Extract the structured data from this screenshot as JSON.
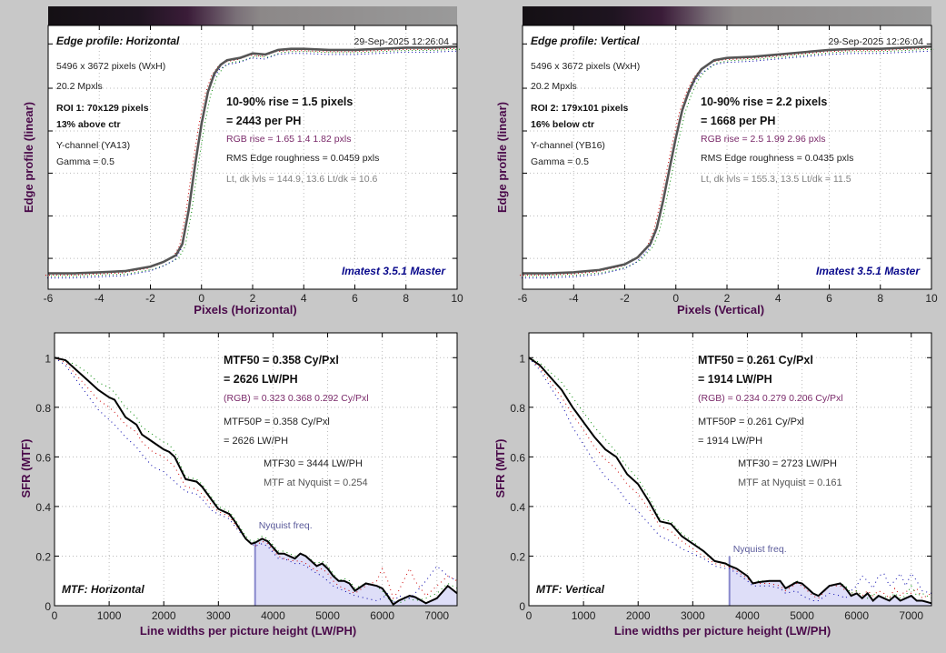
{
  "colors": {
    "background": "#c8c8c8",
    "axis_label": "#4a0a4a",
    "brand": "#0a0a8c",
    "purple_text": "#7a2a6a",
    "nyquist_fill": "#dedef8",
    "nyquist_line": "#8888cc",
    "edge_line": "#555555",
    "mtf_line": "#000000",
    "r_channel": "#cc0000",
    "g_channel": "#008800",
    "b_channel": "#0000aa"
  },
  "chart_data": [
    {
      "type": "line",
      "name": "edge-profile-horizontal",
      "title": "Edge profile: Horizontal",
      "timestamp": "29-Sep-2025 12:26:04",
      "xlabel": "Pixels (Horizontal)",
      "ylabel": "Edge profile (linear)",
      "xlim": [
        -6,
        10
      ],
      "xticks": [
        "-6",
        "-4",
        "-2",
        "0",
        "2",
        "4",
        "6",
        "8",
        "10"
      ],
      "grid": true,
      "gradient_bar": true,
      "info": {
        "size": "5496 x 3672 pixels (WxH)",
        "mpxls": "20.2 Mpxls",
        "roi": "ROI 1:  70x129 pixels",
        "roi_pos": "13% above ctr",
        "channel": "Y-channel  (YA13)",
        "gamma": "Gamma = 0.5"
      },
      "results": {
        "rise": "10-90% rise = 1.5 pixels",
        "per_ph": "= 2443 per PH",
        "rgb_rise": "RGB rise = 1.65  1.4  1.82 pxls",
        "roughness": "RMS Edge roughness = 0.0459 pxls",
        "levels": "Lt, dk lvls = 144.9, 13.6   Lt/dk = 10.6"
      },
      "brand": "Imatest 3.5.1 Master",
      "edge_center": -0.1,
      "edge_width": 0.55,
      "level_low": 0.06,
      "level_high": 0.93,
      "series": [
        {
          "name": "Y",
          "x": [
            -6,
            -5,
            -4,
            -3,
            -2,
            -1.5,
            -1,
            -0.75,
            -0.5,
            -0.25,
            0,
            0.25,
            0.5,
            0.75,
            1,
            1.5,
            2,
            2.5,
            3,
            3.5,
            4,
            5,
            6,
            7,
            8,
            9,
            10
          ],
          "values": [
            0.0,
            0.0,
            0.005,
            0.01,
            0.03,
            0.05,
            0.08,
            0.13,
            0.28,
            0.48,
            0.66,
            0.8,
            0.88,
            0.92,
            0.94,
            0.95,
            0.97,
            0.965,
            0.985,
            0.99,
            0.99,
            0.985,
            0.985,
            0.99,
            0.995,
            0.995,
            1.0
          ]
        }
      ]
    },
    {
      "type": "line",
      "name": "edge-profile-vertical",
      "title": "Edge profile: Vertical",
      "timestamp": "29-Sep-2025 12:26:04",
      "xlabel": "Pixels (Vertical)",
      "ylabel": "Edge profile (linear)",
      "xlim": [
        -6,
        10
      ],
      "xticks": [
        "-6",
        "-4",
        "-2",
        "0",
        "2",
        "4",
        "6",
        "8",
        "10"
      ],
      "grid": true,
      "gradient_bar": true,
      "info": {
        "size": "5496 x 3672 pixels (WxH)",
        "mpxls": "20.2 Mpxls",
        "roi": "ROI 2:  179x101 pixels",
        "roi_pos": "16% below ctr",
        "channel": "Y-channel  (YB16)",
        "gamma": "Gamma = 0.5"
      },
      "results": {
        "rise": "10-90% rise = 2.2 pixels",
        "per_ph": "= 1668 per PH",
        "rgb_rise": "RGB rise = 2.5  1.99  2.96 pxls",
        "roughness": "RMS Edge roughness = 0.0435 pxls",
        "levels": "Lt, dk lvls = 155.3, 13.5   Lt/dk = 11.5"
      },
      "brand": "Imatest 3.5.1 Master",
      "series": [
        {
          "name": "Y",
          "x": [
            -6,
            -5,
            -4,
            -3,
            -2,
            -1.5,
            -1,
            -0.75,
            -0.5,
            -0.25,
            0,
            0.25,
            0.5,
            0.75,
            1,
            1.5,
            2,
            3,
            4,
            5,
            6,
            7,
            8,
            9,
            10
          ],
          "values": [
            0.0,
            0.0,
            0.005,
            0.015,
            0.04,
            0.07,
            0.13,
            0.2,
            0.32,
            0.46,
            0.6,
            0.72,
            0.8,
            0.86,
            0.9,
            0.94,
            0.95,
            0.955,
            0.965,
            0.975,
            0.985,
            0.99,
            0.99,
            0.995,
            1.0
          ]
        }
      ]
    },
    {
      "type": "line",
      "name": "mtf-horizontal",
      "title": "MTF: Horizontal",
      "xlabel": "Line widths per picture height (LW/PH)",
      "ylabel": "SFR (MTF)",
      "xlim": [
        0,
        7370
      ],
      "ylim": [
        0,
        1.1
      ],
      "xticks": [
        "0",
        "1000",
        "2000",
        "3000",
        "4000",
        "5000",
        "6000",
        "7000"
      ],
      "yticks": [
        "0",
        "0.2",
        "0.4",
        "0.6",
        "0.8",
        "1"
      ],
      "grid": true,
      "nyquist": 3672,
      "nyquist_label": "Nyquist freq.",
      "results": {
        "mtf50": "MTF50 = 0.358 Cy/Pxl",
        "mtf50_lwph": "= 2626 LW/PH",
        "rgb": "(RGB) = 0.323  0.368  0.292 Cy/Pxl",
        "mtf50p": "MTF50P = 0.358 Cy/Pxl",
        "mtf50p_lwph": "= 2626 LW/PH",
        "mtf30": "MTF30 = 3444 LW/PH",
        "nyq": "MTF at Nyquist = 0.254"
      },
      "x": [
        0,
        200,
        400,
        600,
        800,
        1000,
        1100,
        1300,
        1500,
        1600,
        1800,
        2000,
        2100,
        2200,
        2400,
        2600,
        2700,
        2900,
        3000,
        3200,
        3300,
        3500,
        3600,
        3672,
        3800,
        3900,
        4100,
        4200,
        4400,
        4500,
        4600,
        4800,
        4900,
        5000,
        5100,
        5200,
        5300,
        5400,
        5500,
        5700,
        5900,
        6000,
        6100,
        6200,
        6300,
        6500,
        6600,
        6800,
        7000,
        7200,
        7370
      ],
      "series": [
        {
          "name": "Y",
          "values": [
            1.0,
            0.99,
            0.95,
            0.91,
            0.87,
            0.84,
            0.83,
            0.76,
            0.73,
            0.69,
            0.66,
            0.63,
            0.62,
            0.6,
            0.51,
            0.5,
            0.48,
            0.42,
            0.39,
            0.37,
            0.34,
            0.27,
            0.25,
            0.254,
            0.27,
            0.26,
            0.21,
            0.21,
            0.19,
            0.21,
            0.2,
            0.16,
            0.17,
            0.15,
            0.12,
            0.1,
            0.1,
            0.09,
            0.06,
            0.09,
            0.08,
            0.07,
            0.04,
            0.005,
            0.02,
            0.04,
            0.035,
            0.01,
            0.03,
            0.08,
            0.05
          ]
        },
        {
          "name": "R",
          "values": [
            1.0,
            0.98,
            0.93,
            0.88,
            0.83,
            0.8,
            0.78,
            0.73,
            0.7,
            0.66,
            0.62,
            0.6,
            0.58,
            0.56,
            0.48,
            0.47,
            0.45,
            0.4,
            0.38,
            0.36,
            0.33,
            0.27,
            0.25,
            0.24,
            0.26,
            0.25,
            0.2,
            0.19,
            0.18,
            0.18,
            0.17,
            0.14,
            0.15,
            0.13,
            0.1,
            0.08,
            0.07,
            0.06,
            0.05,
            0.08,
            0.1,
            0.15,
            0.1,
            0.03,
            0.06,
            0.15,
            0.1,
            0.04,
            0.08,
            0.12,
            0.1
          ]
        },
        {
          "name": "G",
          "values": [
            1.0,
            0.99,
            0.97,
            0.94,
            0.9,
            0.88,
            0.86,
            0.8,
            0.76,
            0.72,
            0.69,
            0.66,
            0.65,
            0.62,
            0.52,
            0.51,
            0.49,
            0.43,
            0.4,
            0.38,
            0.35,
            0.28,
            0.26,
            0.26,
            0.28,
            0.27,
            0.22,
            0.22,
            0.2,
            0.21,
            0.2,
            0.17,
            0.18,
            0.16,
            0.13,
            0.1,
            0.11,
            0.1,
            0.07,
            0.09,
            0.08,
            0.06,
            0.03,
            0.02,
            0.01,
            0.03,
            0.02,
            0.03,
            0.05,
            0.09,
            0.07
          ]
        },
        {
          "name": "B",
          "values": [
            1.0,
            0.97,
            0.91,
            0.85,
            0.79,
            0.75,
            0.73,
            0.68,
            0.64,
            0.61,
            0.56,
            0.54,
            0.52,
            0.5,
            0.46,
            0.45,
            0.43,
            0.38,
            0.37,
            0.35,
            0.32,
            0.27,
            0.25,
            0.24,
            0.25,
            0.24,
            0.19,
            0.19,
            0.17,
            0.17,
            0.16,
            0.13,
            0.12,
            0.1,
            0.08,
            0.07,
            0.06,
            0.05,
            0.04,
            0.03,
            0.02,
            0.03,
            0.05,
            0.01,
            0.04,
            0.03,
            0.05,
            0.1,
            0.16,
            0.12,
            0.1
          ]
        }
      ]
    },
    {
      "type": "line",
      "name": "mtf-vertical",
      "title": "MTF: Vertical",
      "xlabel": "Line widths per picture height (LW/PH)",
      "ylabel": "SFR (MTF)",
      "xlim": [
        0,
        7370
      ],
      "ylim": [
        0,
        1.1
      ],
      "xticks": [
        "0",
        "1000",
        "2000",
        "3000",
        "4000",
        "5000",
        "6000",
        "7000"
      ],
      "yticks": [
        "0",
        "0.2",
        "0.4",
        "0.6",
        "0.8",
        "1"
      ],
      "grid": true,
      "nyquist": 3672,
      "nyquist_label": "Nyquist freq.",
      "results": {
        "mtf50": "MTF50 = 0.261 Cy/Pxl",
        "mtf50_lwph": "= 1914 LW/PH",
        "rgb": "(RGB) = 0.234  0.279  0.206 Cy/Pxl",
        "mtf50p": "MTF50P = 0.261 Cy/Pxl",
        "mtf50p_lwph": "= 1914 LW/PH",
        "mtf30": "MTF30 = 2723 LW/PH",
        "nyq": "MTF at Nyquist = 0.161"
      },
      "x": [
        0,
        200,
        400,
        600,
        800,
        1000,
        1200,
        1400,
        1600,
        1800,
        2000,
        2200,
        2400,
        2600,
        2800,
        3000,
        3200,
        3400,
        3600,
        3672,
        3800,
        4000,
        4100,
        4200,
        4400,
        4600,
        4700,
        4900,
        5000,
        5100,
        5200,
        5300,
        5500,
        5700,
        5800,
        5900,
        6000,
        6100,
        6200,
        6300,
        6400,
        6500,
        6600,
        6700,
        6800,
        6900,
        7000,
        7100,
        7200,
        7370
      ],
      "series": [
        {
          "name": "Y",
          "values": [
            1.0,
            0.97,
            0.92,
            0.87,
            0.8,
            0.74,
            0.68,
            0.63,
            0.6,
            0.53,
            0.49,
            0.42,
            0.34,
            0.33,
            0.28,
            0.25,
            0.22,
            0.18,
            0.17,
            0.161,
            0.15,
            0.12,
            0.09,
            0.095,
            0.1,
            0.1,
            0.07,
            0.095,
            0.09,
            0.07,
            0.05,
            0.04,
            0.08,
            0.09,
            0.07,
            0.04,
            0.05,
            0.03,
            0.05,
            0.02,
            0.04,
            0.03,
            0.02,
            0.04,
            0.02,
            0.03,
            0.04,
            0.02,
            0.02,
            0.01
          ]
        },
        {
          "name": "R",
          "values": [
            1.0,
            0.96,
            0.9,
            0.84,
            0.77,
            0.71,
            0.64,
            0.59,
            0.55,
            0.49,
            0.45,
            0.39,
            0.32,
            0.3,
            0.26,
            0.23,
            0.2,
            0.17,
            0.16,
            0.155,
            0.14,
            0.11,
            0.09,
            0.09,
            0.09,
            0.08,
            0.06,
            0.09,
            0.08,
            0.06,
            0.04,
            0.03,
            0.08,
            0.08,
            0.06,
            0.05,
            0.06,
            0.04,
            0.06,
            0.04,
            0.06,
            0.05,
            0.03,
            0.07,
            0.04,
            0.06,
            0.05,
            0.07,
            0.03,
            0.05
          ]
        },
        {
          "name": "G",
          "values": [
            1.0,
            0.98,
            0.94,
            0.9,
            0.84,
            0.78,
            0.72,
            0.67,
            0.62,
            0.56,
            0.51,
            0.44,
            0.35,
            0.34,
            0.29,
            0.26,
            0.22,
            0.18,
            0.17,
            0.165,
            0.15,
            0.12,
            0.09,
            0.1,
            0.1,
            0.1,
            0.07,
            0.1,
            0.09,
            0.07,
            0.05,
            0.04,
            0.08,
            0.09,
            0.08,
            0.05,
            0.06,
            0.04,
            0.03,
            0.05,
            0.03,
            0.04,
            0.03,
            0.05,
            0.03,
            0.04,
            0.08,
            0.04,
            0.05,
            0.03
          ]
        },
        {
          "name": "B",
          "values": [
            1.0,
            0.95,
            0.88,
            0.81,
            0.72,
            0.65,
            0.58,
            0.52,
            0.48,
            0.42,
            0.38,
            0.33,
            0.28,
            0.26,
            0.23,
            0.21,
            0.19,
            0.16,
            0.15,
            0.15,
            0.13,
            0.1,
            0.08,
            0.08,
            0.08,
            0.07,
            0.05,
            0.06,
            0.04,
            0.03,
            0.02,
            0.02,
            0.05,
            0.04,
            0.03,
            0.06,
            0.08,
            0.12,
            0.1,
            0.07,
            0.12,
            0.13,
            0.08,
            0.1,
            0.13,
            0.08,
            0.13,
            0.1,
            0.06,
            0.05
          ]
        }
      ]
    }
  ]
}
